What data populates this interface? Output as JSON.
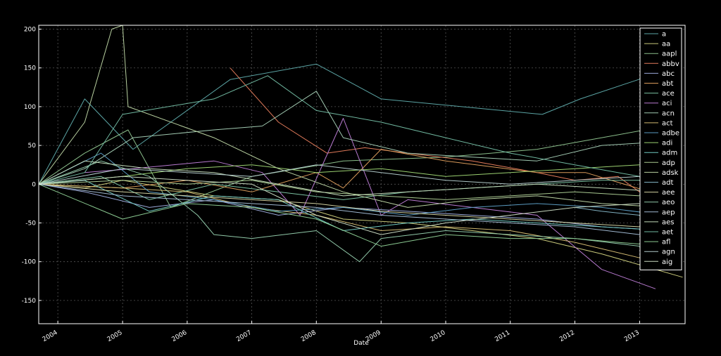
{
  "chart_data": {
    "type": "line",
    "xlabel": "Date",
    "ylabel": "",
    "x_ticks": [
      "2004",
      "2005",
      "2006",
      "2007",
      "2008",
      "2009",
      "2010",
      "2011",
      "2012",
      "2013"
    ],
    "y_ticks": [
      200,
      150,
      100,
      50,
      0,
      -50,
      -100,
      -150
    ],
    "xlim": [
      "2003-09-15",
      "2013-09-15"
    ],
    "ylim": [
      -180,
      205
    ],
    "grid": true,
    "legend_position": "top-right",
    "series": [
      {
        "name": "a",
        "color": "#5ba4a4",
        "points": [
          [
            "2003-09-15",
            0
          ],
          [
            "2004-06-01",
            110
          ],
          [
            "2005-03-01",
            45
          ],
          [
            "2006-09-01",
            135
          ],
          [
            "2008-01-01",
            155
          ],
          [
            "2009-01-01",
            110
          ],
          [
            "2011-07-01",
            90
          ],
          [
            "2012-02-01",
            110
          ],
          [
            "2013-03-01",
            140
          ]
        ]
      },
      {
        "name": "aa",
        "color": "#c8c87a",
        "points": [
          [
            "2003-09-15",
            0
          ],
          [
            "2004-06-01",
            -5
          ],
          [
            "2005-01-01",
            5
          ],
          [
            "2006-06-01",
            -15
          ],
          [
            "2007-06-01",
            -20
          ],
          [
            "2008-06-01",
            -45
          ],
          [
            "2009-06-01",
            -50
          ],
          [
            "2010-06-01",
            -60
          ],
          [
            "2011-06-01",
            -70
          ],
          [
            "2012-06-01",
            -90
          ],
          [
            "2013-09-01",
            -120
          ]
        ]
      },
      {
        "name": "aapl",
        "color": "#8abd8a",
        "points": [
          [
            "2003-09-15",
            0
          ],
          [
            "2004-06-01",
            40
          ],
          [
            "2005-02-01",
            70
          ],
          [
            "2005-10-01",
            -30
          ],
          [
            "2007-01-01",
            10
          ],
          [
            "2008-06-01",
            30
          ],
          [
            "2010-01-01",
            35
          ],
          [
            "2011-06-01",
            45
          ],
          [
            "2012-06-01",
            60
          ],
          [
            "2013-06-01",
            75
          ]
        ]
      },
      {
        "name": "abbv",
        "color": "#e07a5a",
        "points": [
          [
            "2006-09-01",
            150
          ],
          [
            "2007-06-01",
            80
          ],
          [
            "2008-03-01",
            40
          ],
          [
            "2008-10-01",
            47
          ],
          [
            "2009-06-01",
            40
          ],
          [
            "2010-06-01",
            30
          ],
          [
            "2011-06-01",
            15
          ],
          [
            "2012-01-01",
            5
          ],
          [
            "2012-09-01",
            10
          ],
          [
            "2013-06-01",
            -35
          ]
        ]
      },
      {
        "name": "abc",
        "color": "#9aa8d8",
        "points": [
          [
            "2003-09-15",
            0
          ],
          [
            "2004-06-01",
            -10
          ],
          [
            "2005-06-01",
            -30
          ],
          [
            "2006-06-01",
            -20
          ],
          [
            "2007-06-01",
            -40
          ],
          [
            "2008-06-01",
            -30
          ],
          [
            "2009-06-01",
            -35
          ],
          [
            "2010-06-01",
            -40
          ],
          [
            "2011-06-01",
            -45
          ],
          [
            "2012-06-01",
            -55
          ],
          [
            "2013-06-01",
            -60
          ]
        ]
      },
      {
        "name": "abt",
        "color": "#d89a5a",
        "points": [
          [
            "2003-09-15",
            0
          ],
          [
            "2005-01-01",
            -5
          ],
          [
            "2006-01-01",
            5
          ],
          [
            "2007-01-01",
            -10
          ],
          [
            "2008-01-01",
            15
          ],
          [
            "2008-06-01",
            -5
          ],
          [
            "2009-01-01",
            45
          ],
          [
            "2010-01-01",
            30
          ],
          [
            "2011-06-01",
            15
          ],
          [
            "2012-03-01",
            15
          ],
          [
            "2013-03-01",
            -10
          ]
        ]
      },
      {
        "name": "ace",
        "color": "#7ac0a0",
        "points": [
          [
            "2003-09-15",
            0
          ],
          [
            "2004-09-01",
            10
          ],
          [
            "2005-06-01",
            -20
          ],
          [
            "2006-06-01",
            0
          ],
          [
            "2007-06-01",
            -10
          ],
          [
            "2008-06-01",
            -20
          ],
          [
            "2009-06-01",
            -10
          ],
          [
            "2010-06-01",
            -5
          ],
          [
            "2011-06-01",
            0
          ],
          [
            "2012-06-01",
            5
          ],
          [
            "2013-06-01",
            5
          ]
        ]
      },
      {
        "name": "aci",
        "color": "#b87ad0",
        "points": [
          [
            "2004-06-01",
            15
          ],
          [
            "2005-03-01",
            20
          ],
          [
            "2006-06-01",
            30
          ],
          [
            "2007-03-01",
            15
          ],
          [
            "2007-10-01",
            -40
          ],
          [
            "2008-06-01",
            85
          ],
          [
            "2009-01-01",
            -40
          ],
          [
            "2009-06-01",
            -20
          ],
          [
            "2010-06-01",
            -30
          ],
          [
            "2011-06-01",
            -40
          ],
          [
            "2012-06-01",
            -110
          ],
          [
            "2013-04-01",
            -135
          ]
        ]
      },
      {
        "name": "acn",
        "color": "#a0c8b0",
        "points": [
          [
            "2003-09-15",
            0
          ],
          [
            "2004-06-01",
            20
          ],
          [
            "2005-03-01",
            60
          ],
          [
            "2006-06-01",
            70
          ],
          [
            "2007-03-01",
            75
          ],
          [
            "2008-01-01",
            120
          ],
          [
            "2008-06-01",
            60
          ],
          [
            "2009-06-01",
            40
          ],
          [
            "2010-06-01",
            35
          ],
          [
            "2011-06-01",
            30
          ],
          [
            "2012-06-01",
            50
          ],
          [
            "2013-06-01",
            55
          ]
        ]
      },
      {
        "name": "act",
        "color": "#d0b870",
        "points": [
          [
            "2003-09-15",
            0
          ],
          [
            "2005-01-01",
            -5
          ],
          [
            "2006-01-01",
            -10
          ],
          [
            "2007-01-01",
            -30
          ],
          [
            "2008-01-01",
            -40
          ],
          [
            "2009-01-01",
            -60
          ],
          [
            "2010-01-01",
            -55
          ],
          [
            "2011-01-01",
            -60
          ],
          [
            "2012-01-01",
            -75
          ],
          [
            "2013-01-01",
            -95
          ]
        ]
      },
      {
        "name": "adbe",
        "color": "#5a9ac0",
        "points": [
          [
            "2003-09-15",
            0
          ],
          [
            "2004-09-01",
            40
          ],
          [
            "2005-06-01",
            -10
          ],
          [
            "2006-06-01",
            -20
          ],
          [
            "2007-06-01",
            -35
          ],
          [
            "2008-06-01",
            -30
          ],
          [
            "2009-06-01",
            -40
          ],
          [
            "2010-06-01",
            -30
          ],
          [
            "2011-06-01",
            -25
          ],
          [
            "2012-06-01",
            -30
          ],
          [
            "2013-06-01",
            -40
          ]
        ]
      },
      {
        "name": "adi",
        "color": "#9ad070",
        "points": [
          [
            "2003-09-15",
            0
          ],
          [
            "2005-01-01",
            10
          ],
          [
            "2006-01-01",
            20
          ],
          [
            "2007-01-01",
            25
          ],
          [
            "2008-01-01",
            15
          ],
          [
            "2009-01-01",
            20
          ],
          [
            "2010-01-01",
            10
          ],
          [
            "2011-01-01",
            15
          ],
          [
            "2012-01-01",
            20
          ],
          [
            "2013-01-01",
            25
          ]
        ]
      },
      {
        "name": "adm",
        "color": "#70c8c0",
        "points": [
          [
            "2003-09-15",
            0
          ],
          [
            "2004-06-01",
            5
          ],
          [
            "2005-06-01",
            -35
          ],
          [
            "2006-06-01",
            -15
          ],
          [
            "2007-06-01",
            -20
          ],
          [
            "2008-06-01",
            -60
          ],
          [
            "2009-06-01",
            -50
          ],
          [
            "2010-06-01",
            -45
          ],
          [
            "2011-06-01",
            -50
          ],
          [
            "2012-06-01",
            -55
          ],
          [
            "2013-06-01",
            -60
          ]
        ]
      },
      {
        "name": "adp",
        "color": "#a8c890",
        "points": [
          [
            "2003-09-15",
            0
          ],
          [
            "2005-01-01",
            5
          ],
          [
            "2006-01-01",
            0
          ],
          [
            "2007-01-01",
            5
          ],
          [
            "2008-01-01",
            -10
          ],
          [
            "2009-01-01",
            -15
          ],
          [
            "2010-01-01",
            -20
          ],
          [
            "2011-01-01",
            -15
          ],
          [
            "2012-01-01",
            -10
          ],
          [
            "2013-01-01",
            -15
          ]
        ]
      },
      {
        "name": "adsk",
        "color": "#b8d0a0",
        "points": [
          [
            "2003-09-15",
            0
          ],
          [
            "2004-06-01",
            80
          ],
          [
            "2004-11-01",
            200
          ],
          [
            "2005-01-01",
            205
          ],
          [
            "2005-02-01",
            100
          ],
          [
            "2006-06-01",
            60
          ],
          [
            "2007-06-01",
            20
          ],
          [
            "2008-06-01",
            -10
          ],
          [
            "2009-06-01",
            -30
          ],
          [
            "2010-06-01",
            -20
          ],
          [
            "2011-06-01",
            -15
          ],
          [
            "2012-06-01",
            -25
          ],
          [
            "2013-06-01",
            -30
          ]
        ]
      },
      {
        "name": "adt",
        "color": "#80b0c0",
        "points": [
          [
            "2012-01-01",
            -30
          ],
          [
            "2012-06-01",
            -35
          ],
          [
            "2013-01-01",
            -40
          ],
          [
            "2013-06-01",
            -45
          ]
        ]
      },
      {
        "name": "aee",
        "color": "#d0d0a0",
        "points": [
          [
            "2003-09-15",
            0
          ],
          [
            "2005-01-01",
            -10
          ],
          [
            "2006-01-01",
            -15
          ],
          [
            "2007-01-01",
            -20
          ],
          [
            "2008-01-01",
            -25
          ],
          [
            "2009-01-01",
            -35
          ],
          [
            "2010-01-01",
            -40
          ],
          [
            "2011-01-01",
            -45
          ],
          [
            "2012-01-01",
            -50
          ],
          [
            "2013-01-01",
            -55
          ]
        ]
      },
      {
        "name": "aeo",
        "color": "#90c8a8",
        "points": [
          [
            "2003-09-15",
            0
          ],
          [
            "2004-09-01",
            30
          ],
          [
            "2005-06-01",
            10
          ],
          [
            "2006-03-01",
            -40
          ],
          [
            "2006-06-01",
            -65
          ],
          [
            "2007-01-01",
            -70
          ],
          [
            "2008-01-01",
            -60
          ],
          [
            "2008-09-01",
            -100
          ],
          [
            "2009-01-01",
            -70
          ],
          [
            "2010-01-01",
            -60
          ],
          [
            "2011-01-01",
            -65
          ],
          [
            "2012-01-01",
            -70
          ],
          [
            "2013-01-01",
            -80
          ]
        ]
      },
      {
        "name": "aep",
        "color": "#a0b8d0",
        "points": [
          [
            "2003-09-15",
            0
          ],
          [
            "2005-01-01",
            -15
          ],
          [
            "2006-01-01",
            -20
          ],
          [
            "2007-01-01",
            -25
          ],
          [
            "2008-01-01",
            -30
          ],
          [
            "2009-01-01",
            -40
          ],
          [
            "2010-01-01",
            -45
          ],
          [
            "2011-01-01",
            -50
          ],
          [
            "2012-01-01",
            -55
          ],
          [
            "2013-01-01",
            -65
          ]
        ]
      },
      {
        "name": "aes",
        "color": "#c0d8b8",
        "points": [
          [
            "2003-09-15",
            0
          ],
          [
            "2004-06-01",
            30
          ],
          [
            "2005-06-01",
            20
          ],
          [
            "2006-06-01",
            15
          ],
          [
            "2007-06-01",
            0
          ],
          [
            "2008-06-01",
            -15
          ],
          [
            "2009-06-01",
            -10
          ],
          [
            "2010-06-01",
            -5
          ],
          [
            "2011-06-01",
            0
          ],
          [
            "2012-06-01",
            -5
          ],
          [
            "2013-06-01",
            -10
          ]
        ]
      },
      {
        "name": "aet",
        "color": "#70b8a0",
        "points": [
          [
            "2003-09-15",
            0
          ],
          [
            "2004-06-01",
            15
          ],
          [
            "2005-01-01",
            90
          ],
          [
            "2006-06-01",
            110
          ],
          [
            "2007-04-01",
            140
          ],
          [
            "2008-01-01",
            95
          ],
          [
            "2009-01-01",
            80
          ],
          [
            "2010-01-01",
            60
          ],
          [
            "2011-01-01",
            40
          ],
          [
            "2012-01-01",
            25
          ],
          [
            "2013-01-01",
            10
          ]
        ]
      },
      {
        "name": "afl",
        "color": "#8ac890",
        "points": [
          [
            "2003-09-15",
            0
          ],
          [
            "2005-01-01",
            -45
          ],
          [
            "2006-01-01",
            -25
          ],
          [
            "2007-01-01",
            -30
          ],
          [
            "2008-01-01",
            -45
          ],
          [
            "2009-01-01",
            -80
          ],
          [
            "2010-01-01",
            -65
          ],
          [
            "2011-01-01",
            -70
          ],
          [
            "2012-01-01",
            -70
          ],
          [
            "2012-09-01",
            -75
          ],
          [
            "2013-06-01",
            -80
          ]
        ]
      },
      {
        "name": "agn",
        "color": "#b0c8c8",
        "points": [
          [
            "2003-09-15",
            0
          ],
          [
            "2005-01-01",
            20
          ],
          [
            "2006-01-01",
            15
          ],
          [
            "2007-01-01",
            10
          ],
          [
            "2008-01-01",
            25
          ],
          [
            "2009-01-01",
            15
          ],
          [
            "2010-01-01",
            5
          ],
          [
            "2011-01-01",
            0
          ],
          [
            "2012-01-01",
            5
          ],
          [
            "2013-01-01",
            10
          ]
        ]
      },
      {
        "name": "aig",
        "color": "#c8d8c0",
        "points": [
          [
            "2003-09-15",
            0
          ],
          [
            "2005-01-01",
            10
          ],
          [
            "2006-01-01",
            5
          ],
          [
            "2007-01-01",
            0
          ],
          [
            "2008-01-01",
            -40
          ],
          [
            "2009-01-01",
            -65
          ],
          [
            "2010-01-01",
            -50
          ],
          [
            "2011-01-01",
            -40
          ],
          [
            "2012-01-01",
            -30
          ],
          [
            "2013-01-01",
            -25
          ]
        ]
      }
    ]
  }
}
